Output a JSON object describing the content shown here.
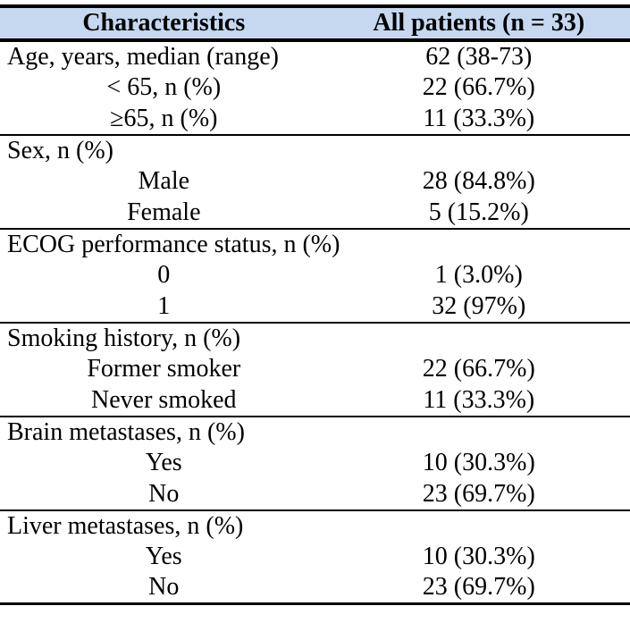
{
  "table": {
    "title_hint": "Patient baseline characteristics table",
    "header_bg": "#c5d8f0",
    "rule_color": "#000000",
    "columns": [
      {
        "label": "Characteristics"
      },
      {
        "label": "All patients (n = 33)"
      }
    ],
    "sections": [
      {
        "rows": [
          {
            "label": "Age, years, median (range)",
            "value": "62 (38-73)",
            "indent": false
          },
          {
            "label": "< 65, n (%)",
            "value": "22 (66.7%)",
            "indent": true
          },
          {
            "label": "≥65, n (%)",
            "value": "11 (33.3%)",
            "indent": true
          }
        ]
      },
      {
        "rows": [
          {
            "label": "Sex, n (%)",
            "value": "",
            "indent": false
          },
          {
            "label": "Male",
            "value": "28 (84.8%)",
            "indent": true
          },
          {
            "label": "Female",
            "value": "5 (15.2%)",
            "indent": true
          }
        ]
      },
      {
        "rows": [
          {
            "label": "ECOG performance status, n (%)",
            "value": "",
            "indent": false
          },
          {
            "label": "0",
            "value": "1 (3.0%)",
            "indent": true
          },
          {
            "label": "1",
            "value": "32 (97%)",
            "indent": true
          }
        ]
      },
      {
        "rows": [
          {
            "label": "Smoking history, n (%)",
            "value": "",
            "indent": false
          },
          {
            "label": "Former smoker",
            "value": "22 (66.7%)",
            "indent": true
          },
          {
            "label": "Never smoked",
            "value": "11 (33.3%)",
            "indent": true
          }
        ]
      },
      {
        "rows": [
          {
            "label": "Brain metastases, n (%)",
            "value": "",
            "indent": false
          },
          {
            "label": "Yes",
            "value": "10 (30.3%)",
            "indent": true
          },
          {
            "label": "No",
            "value": "23 (69.7%)",
            "indent": true
          }
        ]
      },
      {
        "rows": [
          {
            "label": "Liver metastases, n (%)",
            "value": "",
            "indent": false
          },
          {
            "label": "Yes",
            "value": "10 (30.3%)",
            "indent": true
          },
          {
            "label": "No",
            "value": "23 (69.7%)",
            "indent": true
          }
        ]
      }
    ]
  }
}
